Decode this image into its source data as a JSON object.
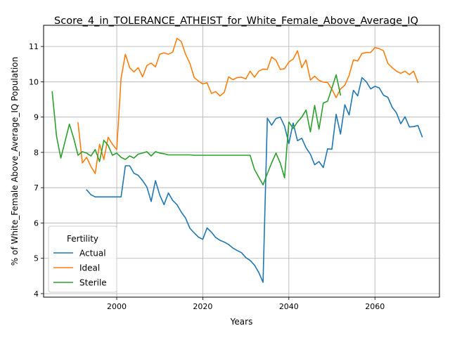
{
  "chart_data": {
    "type": "line",
    "title": "Score_4_in_TOLERANCE_ATHEIST_for_White_Female_Above_Average_IQ",
    "xlabel": "Years",
    "ylabel": "% of White_Female Above_Average_IQ Population",
    "xlim": [
      1983,
      2075
    ],
    "ylim": [
      3.9,
      11.6
    ],
    "x_ticks": [
      2000,
      2020,
      2040,
      2060
    ],
    "y_ticks": [
      4,
      5,
      6,
      7,
      8,
      9,
      10,
      11
    ],
    "grid": true,
    "legend": {
      "title": "Fertility",
      "position": "lower-left"
    },
    "series": [
      {
        "name": "Actual",
        "color": "#1f77b4",
        "points": [
          [
            1993,
            6.94
          ],
          [
            1994,
            6.8
          ],
          [
            1995,
            6.74
          ],
          [
            1996,
            6.74
          ],
          [
            1997,
            6.74
          ],
          [
            1998,
            6.74
          ],
          [
            1999,
            6.74
          ],
          [
            2000,
            6.74
          ],
          [
            2001,
            6.74
          ],
          [
            2002,
            7.62
          ],
          [
            2003,
            7.62
          ],
          [
            2004,
            7.41
          ],
          [
            2005,
            7.35
          ],
          [
            2006,
            7.2
          ],
          [
            2007,
            7.02
          ],
          [
            2008,
            6.61
          ],
          [
            2009,
            7.2
          ],
          [
            2010,
            6.79
          ],
          [
            2011,
            6.52
          ],
          [
            2012,
            6.85
          ],
          [
            2013,
            6.64
          ],
          [
            2014,
            6.52
          ],
          [
            2015,
            6.31
          ],
          [
            2016,
            6.14
          ],
          [
            2017,
            5.85
          ],
          [
            2018,
            5.72
          ],
          [
            2019,
            5.6
          ],
          [
            2020,
            5.54
          ],
          [
            2021,
            5.86
          ],
          [
            2022,
            5.74
          ],
          [
            2023,
            5.59
          ],
          [
            2024,
            5.51
          ],
          [
            2025,
            5.46
          ],
          [
            2026,
            5.39
          ],
          [
            2027,
            5.29
          ],
          [
            2028,
            5.22
          ],
          [
            2029,
            5.16
          ],
          [
            2030,
            5.02
          ],
          [
            2031,
            4.94
          ],
          [
            2032,
            4.81
          ],
          [
            2033,
            4.6
          ],
          [
            2034,
            4.32
          ],
          [
            2035,
            8.97
          ],
          [
            2036,
            8.77
          ],
          [
            2037,
            8.96
          ],
          [
            2038,
            9.0
          ],
          [
            2039,
            8.74
          ],
          [
            2040,
            8.25
          ],
          [
            2041,
            8.83
          ],
          [
            2042,
            8.33
          ],
          [
            2043,
            8.4
          ],
          [
            2044,
            8.13
          ],
          [
            2045,
            7.95
          ],
          [
            2046,
            7.65
          ],
          [
            2047,
            7.74
          ],
          [
            2048,
            7.57
          ],
          [
            2049,
            8.1
          ],
          [
            2050,
            8.09
          ],
          [
            2051,
            9.08
          ],
          [
            2052,
            8.52
          ],
          [
            2053,
            9.35
          ],
          [
            2054,
            9.06
          ],
          [
            2055,
            9.76
          ],
          [
            2056,
            9.6
          ],
          [
            2057,
            10.12
          ],
          [
            2058,
            10.0
          ],
          [
            2059,
            9.8
          ],
          [
            2060,
            9.87
          ],
          [
            2061,
            9.83
          ],
          [
            2062,
            9.62
          ],
          [
            2063,
            9.56
          ],
          [
            2064,
            9.28
          ],
          [
            2065,
            9.12
          ],
          [
            2066,
            8.81
          ],
          [
            2067,
            9.01
          ],
          [
            2068,
            8.72
          ],
          [
            2069,
            8.73
          ],
          [
            2070,
            8.76
          ],
          [
            2071,
            8.44
          ]
        ]
      },
      {
        "name": "Ideal",
        "color": "#ff7f0e",
        "points": [
          [
            1991,
            8.84
          ],
          [
            1992,
            7.7
          ],
          [
            1993,
            7.86
          ],
          [
            1994,
            7.6
          ],
          [
            1995,
            7.4
          ],
          [
            1996,
            8.23
          ],
          [
            1997,
            7.8
          ],
          [
            1998,
            8.43
          ],
          [
            1999,
            8.23
          ],
          [
            2000,
            8.08
          ],
          [
            2001,
            10.1
          ],
          [
            2002,
            10.78
          ],
          [
            2003,
            10.4
          ],
          [
            2004,
            10.28
          ],
          [
            2005,
            10.4
          ],
          [
            2006,
            10.14
          ],
          [
            2007,
            10.46
          ],
          [
            2008,
            10.53
          ],
          [
            2009,
            10.42
          ],
          [
            2010,
            10.78
          ],
          [
            2011,
            10.82
          ],
          [
            2012,
            10.78
          ],
          [
            2013,
            10.84
          ],
          [
            2014,
            11.23
          ],
          [
            2015,
            11.14
          ],
          [
            2016,
            10.78
          ],
          [
            2017,
            10.52
          ],
          [
            2018,
            10.12
          ],
          [
            2019,
            10.02
          ],
          [
            2020,
            9.94
          ],
          [
            2021,
            9.97
          ],
          [
            2022,
            9.67
          ],
          [
            2023,
            9.72
          ],
          [
            2024,
            9.6
          ],
          [
            2025,
            9.7
          ],
          [
            2026,
            10.14
          ],
          [
            2027,
            10.06
          ],
          [
            2028,
            10.12
          ],
          [
            2029,
            10.13
          ],
          [
            2030,
            10.08
          ],
          [
            2031,
            10.3
          ],
          [
            2032,
            10.13
          ],
          [
            2033,
            10.3
          ],
          [
            2034,
            10.36
          ],
          [
            2035,
            10.35
          ],
          [
            2036,
            10.7
          ],
          [
            2037,
            10.61
          ],
          [
            2038,
            10.35
          ],
          [
            2039,
            10.37
          ],
          [
            2040,
            10.56
          ],
          [
            2041,
            10.64
          ],
          [
            2042,
            10.88
          ],
          [
            2043,
            10.4
          ],
          [
            2044,
            10.62
          ],
          [
            2045,
            10.05
          ],
          [
            2046,
            10.16
          ],
          [
            2047,
            10.04
          ],
          [
            2048,
            9.99
          ],
          [
            2049,
            9.98
          ],
          [
            2050,
            9.79
          ],
          [
            2051,
            9.55
          ],
          [
            2052,
            9.8
          ],
          [
            2053,
            9.9
          ],
          [
            2054,
            10.18
          ],
          [
            2055,
            10.62
          ],
          [
            2056,
            10.59
          ],
          [
            2057,
            10.8
          ],
          [
            2058,
            10.83
          ],
          [
            2059,
            10.83
          ],
          [
            2060,
            10.97
          ],
          [
            2061,
            10.94
          ],
          [
            2062,
            10.88
          ],
          [
            2063,
            10.52
          ],
          [
            2064,
            10.4
          ],
          [
            2065,
            10.3
          ],
          [
            2066,
            10.24
          ],
          [
            2067,
            10.3
          ],
          [
            2068,
            10.2
          ],
          [
            2069,
            10.3
          ],
          [
            2070,
            9.98
          ]
        ]
      },
      {
        "name": "Sterile",
        "color": "#2ca02c",
        "points": [
          [
            1985,
            9.72
          ],
          [
            1986,
            8.46
          ],
          [
            1987,
            7.84
          ],
          [
            1988,
            8.32
          ],
          [
            1989,
            8.8
          ],
          [
            1990,
            8.4
          ],
          [
            1991,
            7.92
          ],
          [
            1992,
            8.02
          ],
          [
            1993,
            7.98
          ],
          [
            1994,
            7.9
          ],
          [
            1995,
            8.08
          ],
          [
            1996,
            7.74
          ],
          [
            1997,
            8.34
          ],
          [
            1998,
            8.2
          ],
          [
            1999,
            7.92
          ],
          [
            2000,
            7.98
          ],
          [
            2001,
            7.86
          ],
          [
            2002,
            7.8
          ],
          [
            2003,
            7.9
          ],
          [
            2004,
            7.84
          ],
          [
            2005,
            7.95
          ],
          [
            2006,
            7.98
          ],
          [
            2007,
            8.02
          ],
          [
            2008,
            7.9
          ],
          [
            2009,
            8.02
          ],
          [
            2010,
            7.98
          ],
          [
            2011,
            7.96
          ],
          [
            2012,
            7.93
          ],
          [
            2013,
            7.93
          ],
          [
            2014,
            7.93
          ],
          [
            2015,
            7.93
          ],
          [
            2016,
            7.93
          ],
          [
            2017,
            7.93
          ],
          [
            2018,
            7.92
          ],
          [
            2019,
            7.92
          ],
          [
            2020,
            7.92
          ],
          [
            2021,
            7.92
          ],
          [
            2022,
            7.92
          ],
          [
            2023,
            7.92
          ],
          [
            2024,
            7.92
          ],
          [
            2025,
            7.92
          ],
          [
            2026,
            7.92
          ],
          [
            2027,
            7.92
          ],
          [
            2028,
            7.92
          ],
          [
            2029,
            7.92
          ],
          [
            2030,
            7.92
          ],
          [
            2031,
            7.92
          ],
          [
            2032,
            7.52
          ],
          [
            2033,
            7.3
          ],
          [
            2034,
            7.08
          ],
          [
            2035,
            7.4
          ],
          [
            2036,
            7.7
          ],
          [
            2037,
            7.98
          ],
          [
            2038,
            7.7
          ],
          [
            2039,
            7.28
          ],
          [
            2040,
            8.86
          ],
          [
            2041,
            8.68
          ],
          [
            2042,
            8.86
          ],
          [
            2043,
            9.0
          ],
          [
            2044,
            9.2
          ],
          [
            2045,
            8.58
          ],
          [
            2046,
            9.33
          ],
          [
            2047,
            8.66
          ],
          [
            2048,
            9.4
          ],
          [
            2049,
            9.45
          ],
          [
            2050,
            9.82
          ],
          [
            2051,
            10.2
          ],
          [
            2052,
            9.62
          ]
        ]
      }
    ]
  }
}
